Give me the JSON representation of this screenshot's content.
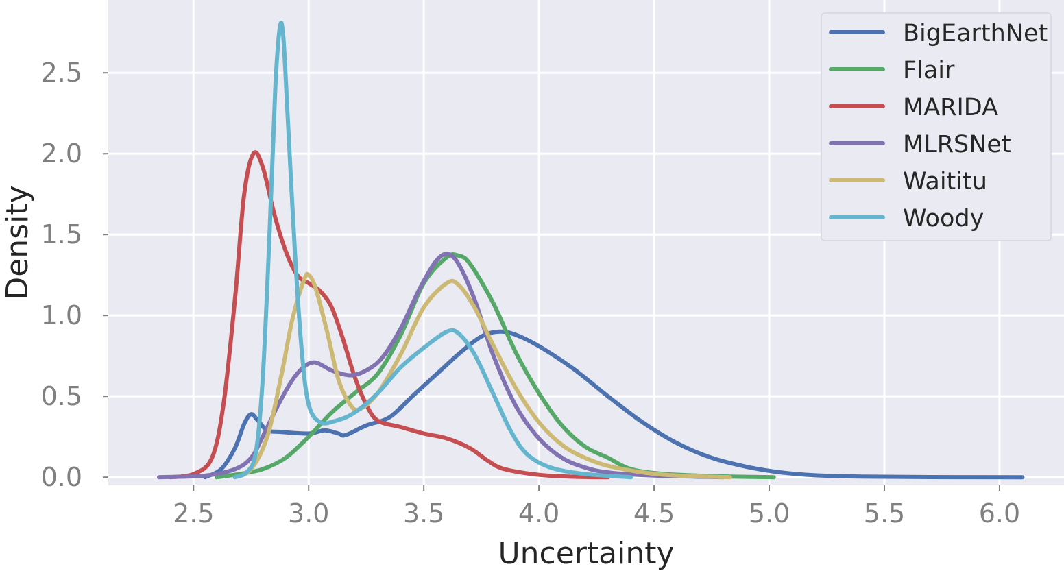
{
  "chart_data": {
    "type": "line",
    "xlabel": "Uncertainty",
    "ylabel": "Density",
    "xlim": [
      2.13,
      6.28
    ],
    "ylim": [
      -0.05,
      2.95
    ],
    "xticks": [
      "2.5",
      "3.0",
      "3.5",
      "4.0",
      "4.5",
      "5.0",
      "5.5",
      "6.0"
    ],
    "xtick_values": [
      2.5,
      3.0,
      3.5,
      4.0,
      4.5,
      5.0,
      5.5,
      6.0
    ],
    "yticks": [
      "0.0",
      "0.5",
      "1.0",
      "1.5",
      "2.0",
      "2.5"
    ],
    "ytick_values": [
      0.0,
      0.5,
      1.0,
      1.5,
      2.0,
      2.5
    ],
    "grid": true,
    "background": "#eaeaf2",
    "legend_position": "top-right",
    "series": [
      {
        "name": "BigEarthNet",
        "color": "#4c72b0",
        "points": [
          [
            2.55,
            0.0
          ],
          [
            2.62,
            0.05
          ],
          [
            2.68,
            0.18
          ],
          [
            2.72,
            0.33
          ],
          [
            2.75,
            0.39
          ],
          [
            2.78,
            0.35
          ],
          [
            2.82,
            0.29
          ],
          [
            2.88,
            0.28
          ],
          [
            3.0,
            0.27
          ],
          [
            3.07,
            0.29
          ],
          [
            3.13,
            0.27
          ],
          [
            3.16,
            0.26
          ],
          [
            3.25,
            0.32
          ],
          [
            3.35,
            0.37
          ],
          [
            3.45,
            0.5
          ],
          [
            3.55,
            0.63
          ],
          [
            3.65,
            0.76
          ],
          [
            3.75,
            0.87
          ],
          [
            3.83,
            0.9
          ],
          [
            3.9,
            0.88
          ],
          [
            4.0,
            0.81
          ],
          [
            4.15,
            0.67
          ],
          [
            4.3,
            0.5
          ],
          [
            4.45,
            0.34
          ],
          [
            4.6,
            0.21
          ],
          [
            4.75,
            0.12
          ],
          [
            4.9,
            0.065
          ],
          [
            5.05,
            0.03
          ],
          [
            5.2,
            0.012
          ],
          [
            5.4,
            0.004
          ],
          [
            5.7,
            0.001
          ],
          [
            6.1,
            0.0
          ]
        ]
      },
      {
        "name": "Flair",
        "color": "#55a868",
        "points": [
          [
            2.6,
            0.0
          ],
          [
            2.7,
            0.02
          ],
          [
            2.8,
            0.05
          ],
          [
            2.9,
            0.12
          ],
          [
            3.0,
            0.25
          ],
          [
            3.1,
            0.4
          ],
          [
            3.2,
            0.52
          ],
          [
            3.3,
            0.64
          ],
          [
            3.4,
            0.88
          ],
          [
            3.5,
            1.2
          ],
          [
            3.6,
            1.36
          ],
          [
            3.65,
            1.37
          ],
          [
            3.7,
            1.32
          ],
          [
            3.8,
            1.08
          ],
          [
            3.9,
            0.77
          ],
          [
            4.0,
            0.52
          ],
          [
            4.1,
            0.32
          ],
          [
            4.2,
            0.19
          ],
          [
            4.3,
            0.12
          ],
          [
            4.4,
            0.05
          ],
          [
            4.55,
            0.02
          ],
          [
            4.8,
            0.005
          ],
          [
            5.02,
            0.0
          ]
        ]
      },
      {
        "name": "MARIDA",
        "color": "#c44e52",
        "points": [
          [
            2.4,
            0.0
          ],
          [
            2.5,
            0.02
          ],
          [
            2.58,
            0.12
          ],
          [
            2.63,
            0.45
          ],
          [
            2.68,
            1.1
          ],
          [
            2.72,
            1.75
          ],
          [
            2.76,
            2.0
          ],
          [
            2.8,
            1.92
          ],
          [
            2.85,
            1.63
          ],
          [
            2.9,
            1.4
          ],
          [
            2.95,
            1.25
          ],
          [
            3.0,
            1.2
          ],
          [
            3.05,
            1.15
          ],
          [
            3.1,
            1.05
          ],
          [
            3.15,
            0.85
          ],
          [
            3.2,
            0.62
          ],
          [
            3.25,
            0.45
          ],
          [
            3.3,
            0.35
          ],
          [
            3.4,
            0.31
          ],
          [
            3.5,
            0.27
          ],
          [
            3.6,
            0.24
          ],
          [
            3.7,
            0.18
          ],
          [
            3.78,
            0.1
          ],
          [
            3.85,
            0.05
          ],
          [
            4.0,
            0.015
          ],
          [
            4.15,
            0.003
          ],
          [
            4.3,
            0.0
          ]
        ]
      },
      {
        "name": "MLRSNet",
        "color": "#8172b2",
        "points": [
          [
            2.35,
            0.0
          ],
          [
            2.55,
            0.01
          ],
          [
            2.68,
            0.05
          ],
          [
            2.75,
            0.12
          ],
          [
            2.8,
            0.25
          ],
          [
            2.88,
            0.48
          ],
          [
            2.95,
            0.64
          ],
          [
            3.02,
            0.71
          ],
          [
            3.1,
            0.66
          ],
          [
            3.18,
            0.63
          ],
          [
            3.25,
            0.66
          ],
          [
            3.32,
            0.74
          ],
          [
            3.4,
            0.92
          ],
          [
            3.48,
            1.16
          ],
          [
            3.55,
            1.33
          ],
          [
            3.6,
            1.38
          ],
          [
            3.65,
            1.32
          ],
          [
            3.72,
            1.1
          ],
          [
            3.8,
            0.76
          ],
          [
            3.9,
            0.44
          ],
          [
            4.0,
            0.24
          ],
          [
            4.1,
            0.12
          ],
          [
            4.2,
            0.06
          ],
          [
            4.3,
            0.03
          ],
          [
            4.5,
            0.01
          ],
          [
            4.8,
            0.0
          ]
        ]
      },
      {
        "name": "Waititu",
        "color": "#ccb974",
        "points": [
          [
            2.68,
            0.0
          ],
          [
            2.75,
            0.05
          ],
          [
            2.82,
            0.25
          ],
          [
            2.88,
            0.62
          ],
          [
            2.93,
            0.98
          ],
          [
            2.98,
            1.22
          ],
          [
            3.0,
            1.25
          ],
          [
            3.03,
            1.17
          ],
          [
            3.08,
            0.9
          ],
          [
            3.13,
            0.6
          ],
          [
            3.18,
            0.45
          ],
          [
            3.22,
            0.42
          ],
          [
            3.3,
            0.52
          ],
          [
            3.4,
            0.76
          ],
          [
            3.5,
            1.05
          ],
          [
            3.6,
            1.2
          ],
          [
            3.65,
            1.19
          ],
          [
            3.72,
            1.05
          ],
          [
            3.8,
            0.82
          ],
          [
            3.9,
            0.55
          ],
          [
            4.0,
            0.34
          ],
          [
            4.1,
            0.2
          ],
          [
            4.2,
            0.12
          ],
          [
            4.3,
            0.07
          ],
          [
            4.45,
            0.03
          ],
          [
            4.6,
            0.01
          ],
          [
            4.83,
            0.0
          ]
        ]
      },
      {
        "name": "Woody",
        "color": "#64b5cd",
        "points": [
          [
            2.68,
            0.0
          ],
          [
            2.73,
            0.03
          ],
          [
            2.77,
            0.15
          ],
          [
            2.8,
            0.6
          ],
          [
            2.83,
            1.5
          ],
          [
            2.855,
            2.4
          ],
          [
            2.875,
            2.78
          ],
          [
            2.89,
            2.72
          ],
          [
            2.91,
            2.2
          ],
          [
            2.94,
            1.4
          ],
          [
            2.97,
            0.78
          ],
          [
            3.0,
            0.45
          ],
          [
            3.05,
            0.34
          ],
          [
            3.12,
            0.35
          ],
          [
            3.2,
            0.4
          ],
          [
            3.3,
            0.52
          ],
          [
            3.4,
            0.68
          ],
          [
            3.5,
            0.8
          ],
          [
            3.6,
            0.9
          ],
          [
            3.65,
            0.89
          ],
          [
            3.72,
            0.76
          ],
          [
            3.8,
            0.52
          ],
          [
            3.88,
            0.28
          ],
          [
            3.95,
            0.14
          ],
          [
            4.05,
            0.06
          ],
          [
            4.2,
            0.02
          ],
          [
            4.4,
            0.0
          ]
        ]
      }
    ]
  }
}
